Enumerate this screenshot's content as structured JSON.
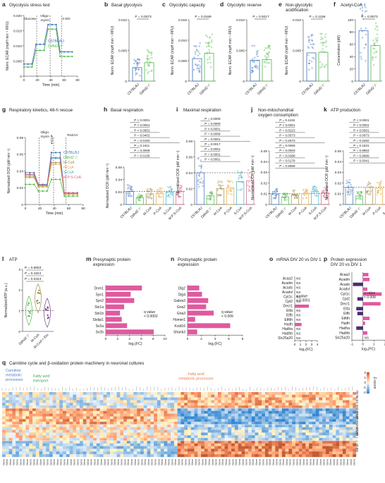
{
  "colors": {
    "wt": "#3b6fb6",
    "ko": "#4fb848",
    "mcoa": "#9a8f4c",
    "pcoa": "#e8a83a",
    "scoa": "#3fb0c4",
    "mpscoa": "#d8607f",
    "presyn": "#df5a9f",
    "postsyn": "#df5a9f",
    "mrna": "#df5a9f",
    "protein_pos": "#df5a9f",
    "protein_neg": "#4a2d73",
    "heatmap_high": "#c03030",
    "heatmap_low": "#2f5da8"
  },
  "panels": {
    "a": {
      "letter": "a",
      "title": "Glycolysis stress test",
      "ylabel": "Norm. ECAR (mpH min⁻¹ RFU)",
      "xlabel": "Time (min)",
      "injections": [
        "Glucose",
        "Oligo-\nmycin",
        "2-DG"
      ],
      "legend": [
        "C57BL/6J",
        "Ddhd2⁻/⁻"
      ]
    },
    "b": {
      "letter": "b",
      "title": "Basal glycolysis",
      "p": "P = 0.0073",
      "ylabel": "Norm. ECAR (mpH min⁻¹ RFU)"
    },
    "c": {
      "letter": "c",
      "title": "Glycolytic capacity",
      "p": "P = 0.0189",
      "ylabel": "Norm. ECAR (mpH min⁻¹ RFU)"
    },
    "d": {
      "letter": "d",
      "title": "Glycolytic reserve",
      "p": "P = 0.9217",
      "ylabel": "Norm. ECAR (mpH min⁻¹ RFU)"
    },
    "e": {
      "letter": "e",
      "title": "Non-glycolytic acidification",
      "p": "P = 0.1156",
      "ylabel": "Norm. ECAR (mpH min⁻¹ RFU)"
    },
    "f": {
      "letter": "f",
      "title": "Acetyl-CoA",
      "p": "P = 0.0073",
      "ylabel": "Concentration (pM)"
    },
    "g": {
      "letter": "g",
      "title": "Respiratory kinetics, 48-h rescue",
      "ylabel": "Normalized OCR (pM min⁻¹)",
      "xlabel": "Time (min)",
      "injections": [
        "Oligo-\nmycin",
        "FCCP",
        "Rot/AA"
      ]
    },
    "h": {
      "letter": "h",
      "title": "Basal respiration",
      "ylabel": "Normalized OCR (pM min⁻¹)",
      "pvals": [
        "P < 0.0001",
        "P < 0.0001",
        "P < 0.0001",
        "P = 0.0402",
        "P = 0.0150",
        "P = 0.1611",
        "P = 0.3008",
        "P = 0.0135"
      ]
    },
    "i": {
      "letter": "i",
      "title": "Maximal respiration",
      "ylabel": "Normalized OCR (pM min⁻¹)",
      "pvals": [
        "P = 0.0009",
        "P = 0.0009",
        "P < 0.0001",
        "P = 0.0009",
        "P = 0.0001",
        "P = 0.0017",
        "P = 0.0001",
        "P = 0.0001",
        "P = 0.0001"
      ]
    },
    "j": {
      "letter": "j",
      "title": "Non-mitochondrial oxygen consumption",
      "ylabel": "Normalized OCR (pM min⁻¹)",
      "pvals": [
        "P = 0.1192",
        "P < 0.0001",
        "P = 0.0215",
        "P = 0.0573",
        "P = 0.2673",
        "P = 0.0066",
        "P = 0.0003",
        "P = 0.0388",
        "P = 0.0178",
        "P = 0.9999"
      ]
    },
    "k": {
      "letter": "k",
      "title": "ATP production",
      "ylabel": "Normalized OCR (pM min⁻¹)",
      "pvals": [
        "P < 0.0001",
        "P < 0.0001",
        "P < 0.0001",
        "P = 0.0073",
        "P = 0.3282",
        "P = 0.1531",
        "P = 0.8863",
        "P = 0.9999",
        "P = 0.0041"
      ]
    },
    "l": {
      "letter": "l",
      "title": "ATP",
      "ylabel": "Normalized ATP (a.u.)",
      "pvals": [
        "P = 0.6803",
        "P = 0.1824",
        "P = 0.0343"
      ],
      "groups": [
        "Ddhd2⁻/⁻",
        "M-CoA",
        "M-CoA + Eto"
      ]
    },
    "m": {
      "letter": "m",
      "title": "Presynaptic protein expression",
      "xlabel": "log₂(FC)",
      "q": "q value\n< 0.0002"
    },
    "n": {
      "letter": "n",
      "title": "Postsynaptic protein expression",
      "xlabel": "log₂(FC)",
      "q": "q value\n< 0.009"
    },
    "o": {
      "letter": "o",
      "title": "mRNA DIV 20 vs DIV 1",
      "xlabel": "log₂(FC)",
      "q": "q value\n< 0.0001",
      "ns": "NS"
    },
    "p": {
      "letter": "p",
      "title": "Protein expression DIV 20 vs DIV 1",
      "xlabel": "log₂(FC)",
      "q": "q value\n< 0.008",
      "ns": "NS"
    },
    "q": {
      "letter": "q",
      "title": "Carnitine cycle and β-oxidation protein machinery in neuronal cultures",
      "sections": [
        "Carnitine metabolic processes",
        "Fatty acid transport",
        "Fatty acid metabolic processes"
      ],
      "row_groups": [
        "C57BL/6J",
        "Ddhd2⁻/⁻",
        "Ddhd2⁻/⁻ + 48-h S-CoA",
        "Ddhd2⁻/⁻ + 48-h M-CoA"
      ],
      "scale_label": "Z-score",
      "scale_ticks": [
        "2",
        "1",
        "0",
        "-1",
        "-2"
      ]
    }
  },
  "chart_data": [
    {
      "panel": "a",
      "type": "line",
      "x": [
        0,
        6,
        12,
        18,
        24,
        30,
        36,
        42,
        48,
        54,
        60,
        66,
        72
      ],
      "series": [
        {
          "name": "C57BL/6J",
          "values": [
            0.004,
            0.004,
            0.004,
            0.0105,
            0.0105,
            0.0105,
            0.017,
            0.017,
            0.017,
            0.008,
            0.008,
            0.008,
            0.008
          ]
        },
        {
          "name": "Ddhd2⁻/⁻",
          "values": [
            0.003,
            0.003,
            0.003,
            0.0085,
            0.0085,
            0.0085,
            0.0155,
            0.0155,
            0.0155,
            0.0065,
            0.0065,
            0.0065,
            0.0065
          ]
        }
      ],
      "xticks": [
        0,
        20,
        40,
        60,
        80
      ],
      "ylim": [
        0,
        0.02
      ],
      "yticks": [
        0,
        0.005,
        0.01,
        0.015,
        0.02
      ]
    },
    {
      "panel": "b",
      "type": "bar",
      "categories": [
        "C57BL/6J",
        "Ddhd2⁻/⁻"
      ],
      "values": [
        0.0022,
        0.003
      ],
      "ylim": [
        0,
        0.01
      ],
      "yticks": [
        0,
        0.005,
        0.01
      ]
    },
    {
      "panel": "c",
      "type": "bar",
      "categories": [
        "C57BL/6J",
        "Ddhd2⁻/⁻"
      ],
      "values": [
        0.0055,
        0.0068
      ],
      "ylim": [
        0,
        0.015
      ],
      "yticks": [
        0,
        0.005,
        0.01,
        0.015
      ]
    },
    {
      "panel": "d",
      "type": "bar",
      "categories": [
        "C57BL/6J",
        "Ddhd2⁻/⁻"
      ],
      "values": [
        0.0034,
        0.0035
      ],
      "ylim": [
        0,
        0.01
      ],
      "yticks": [
        0,
        0.005,
        0.01
      ]
    },
    {
      "panel": "e",
      "type": "bar",
      "categories": [
        "C57BL/6J",
        "Ddhd2⁻/⁻"
      ],
      "values": [
        0.0046,
        0.0047
      ],
      "ylim": [
        0,
        0.01
      ],
      "yticks": [
        0,
        0.005,
        0.01
      ]
    },
    {
      "panel": "f",
      "type": "bar",
      "categories": [
        "C57BL/6J",
        "Ddhd2⁻/⁻"
      ],
      "values": [
        82,
        58
      ],
      "ylim": [
        0,
        100
      ],
      "yticks": [
        0,
        20,
        40,
        60,
        80,
        100
      ]
    },
    {
      "panel": "g",
      "type": "line",
      "x": [
        0,
        6,
        12,
        18,
        24,
        30,
        36,
        42,
        48,
        54,
        60,
        66,
        72
      ],
      "series": [
        {
          "name": "C57BL/6J",
          "values": [
            0.038,
            0.038,
            0.038,
            0.024,
            0.024,
            0.024,
            0.062,
            0.062,
            0.062,
            0.014,
            0.014,
            0.014,
            0.014
          ]
        },
        {
          "name": "Ddhd2⁻/⁻",
          "values": [
            0.024,
            0.024,
            0.024,
            0.016,
            0.016,
            0.016,
            0.03,
            0.03,
            0.03,
            0.01,
            0.01,
            0.01,
            0.01
          ]
        },
        {
          "name": "M-CoA",
          "values": [
            0.033,
            0.033,
            0.033,
            0.022,
            0.022,
            0.022,
            0.05,
            0.05,
            0.05,
            0.013,
            0.013,
            0.013,
            0.013
          ]
        },
        {
          "name": "P-CoA",
          "values": [
            0.032,
            0.032,
            0.032,
            0.021,
            0.021,
            0.021,
            0.048,
            0.048,
            0.048,
            0.012,
            0.012,
            0.012,
            0.012
          ]
        },
        {
          "name": "S-CoA",
          "values": [
            0.035,
            0.035,
            0.035,
            0.023,
            0.023,
            0.023,
            0.055,
            0.055,
            0.055,
            0.013,
            0.013,
            0.013,
            0.013
          ]
        },
        {
          "name": "M:P:S-CoA",
          "values": [
            0.036,
            0.036,
            0.036,
            0.023,
            0.023,
            0.023,
            0.056,
            0.056,
            0.056,
            0.014,
            0.014,
            0.014,
            0.014
          ]
        }
      ],
      "xticks": [
        0,
        20,
        40,
        60,
        80
      ],
      "ylim": [
        0,
        0.08
      ],
      "yticks": [
        0,
        0.02,
        0.04,
        0.06,
        0.08
      ]
    },
    {
      "panel": "h",
      "type": "bar",
      "categories": [
        "C57BL/6J",
        "Ddhd2⁻/⁻",
        "M-CoA",
        "P-CoA",
        "S-CoA",
        "M:P:S-CoA"
      ],
      "values": [
        0.021,
        0.011,
        0.017,
        0.018,
        0.02,
        0.021
      ],
      "ylim": [
        0,
        0.06
      ],
      "yticks": [
        0,
        0.02,
        0.04,
        0.06
      ]
    },
    {
      "panel": "i",
      "type": "bar",
      "categories": [
        "C57BL/6J",
        "Ddhd2⁻/⁻",
        "M-CoA",
        "P-CoA",
        "S-CoA",
        "M:P:S-CoA"
      ],
      "values": [
        0.04,
        0.011,
        0.02,
        0.021,
        0.029,
        0.03
      ],
      "ylim": [
        0,
        0.08
      ],
      "yticks": [
        0,
        0.02,
        0.04,
        0.06,
        0.08
      ]
    },
    {
      "panel": "j",
      "type": "bar",
      "categories": [
        "C57BL/6J",
        "Ddhd2⁻/⁻",
        "M-CoA",
        "P-CoA",
        "S-CoA",
        "M:P:S-CoA"
      ],
      "values": [
        0.01,
        0.007,
        0.009,
        0.01,
        0.012,
        0.011
      ],
      "ylim": [
        0,
        0.05
      ],
      "yticks": [
        0,
        0.01,
        0.02,
        0.03,
        0.04,
        0.05
      ]
    },
    {
      "panel": "k",
      "type": "bar",
      "categories": [
        "C57BL/6J",
        "Ddhd2⁻/⁻",
        "M-CoA",
        "P-CoA",
        "S-CoA",
        "M:P:S-CoA"
      ],
      "values": [
        0.016,
        0.008,
        0.016,
        0.015,
        0.016,
        0.016
      ],
      "ylim": [
        0,
        0.05
      ],
      "yticks": [
        0,
        0.01,
        0.02,
        0.03,
        0.04,
        0.05
      ]
    },
    {
      "panel": "l",
      "type": "scatter",
      "categories": [
        "Ddhd2⁻/⁻",
        "M-CoA",
        "M-CoA + Eto"
      ],
      "values": [
        1.0,
        1.6,
        0.9
      ],
      "ylim": [
        0,
        3
      ],
      "yticks": [
        0,
        1,
        2,
        3
      ]
    },
    {
      "panel": "m",
      "type": "bar",
      "categories": [
        "Dnm1",
        "Syn1",
        "Syn2",
        "Stx1a",
        "Stx1b",
        "Stxbp1",
        "Sv2a",
        "Sv2b"
      ],
      "values": [
        6.1,
        4.2,
        4.8,
        3.1,
        2.4,
        2.7,
        3.6,
        8.1
      ],
      "xlim": [
        0,
        10
      ],
      "xticks": [
        0,
        2,
        4,
        6,
        8,
        10
      ]
    },
    {
      "panel": "n",
      "type": "bar",
      "categories": [
        "Dlg2",
        "Dlg4",
        "Gabra3",
        "Gria2",
        "Gria3",
        "Homer1",
        "Kctd16",
        "Shank3"
      ],
      "values": [
        1.7,
        2.1,
        3.0,
        2.7,
        3.8,
        1.1,
        6.2,
        1.4
      ],
      "xlim": [
        0,
        8
      ],
      "xticks": [
        0,
        2,
        4,
        6,
        8
      ]
    },
    {
      "panel": "o",
      "type": "bar",
      "categories": [
        "Acaa2",
        "Acadm",
        "Acads",
        "Acadvl",
        "Cpt1c",
        "Cpt2",
        "Decr1",
        "Etfa",
        "Etfb",
        "Etfdh",
        "Hadh",
        "Hadha",
        "Hadhb",
        "Slc25a20"
      ],
      "values": [
        0,
        1.7,
        0,
        0,
        0,
        0,
        2.5,
        0,
        0,
        0,
        1.2,
        0,
        0,
        0
      ],
      "ns": [
        true,
        true,
        true,
        true,
        true,
        true,
        false,
        true,
        true,
        true,
        false,
        true,
        true,
        true
      ],
      "xlim": [
        0,
        4
      ],
      "xticks": [
        0,
        1,
        2,
        3,
        4
      ]
    },
    {
      "panel": "p",
      "type": "bar",
      "categories": [
        "Acaa2",
        "Acadm",
        "Acads",
        "Acadvl",
        "Cpt1c",
        "Cpt2",
        "Decr1",
        "Etfa",
        "Etfb",
        "Etfdh",
        "Hadh",
        "Hadha",
        "Hadhb",
        "Slc25a20"
      ],
      "values": [
        0.5,
        0.6,
        -0.9,
        0.4,
        1.7,
        -0.5,
        1.6,
        -0.6,
        -0.5,
        0.6,
        0.2,
        -0.6,
        0.4,
        0
      ],
      "ns": [
        false,
        false,
        false,
        false,
        false,
        false,
        false,
        false,
        false,
        false,
        false,
        false,
        false,
        true
      ],
      "xlim": [
        -1,
        2
      ],
      "xticks": [
        -1,
        0,
        1,
        2
      ]
    },
    {
      "panel": "q",
      "type": "heatmap",
      "rows": 24,
      "cols": 105,
      "zlim": [
        -2,
        2
      ]
    }
  ]
}
